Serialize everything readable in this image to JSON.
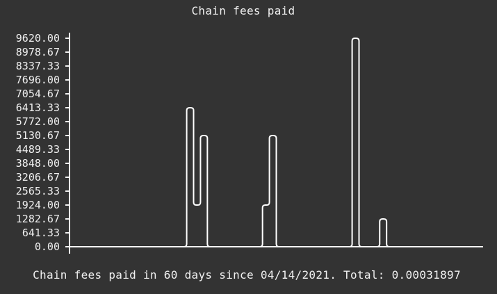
{
  "colors": {
    "background": "#333333",
    "foreground": "#f0f0f0",
    "line": "#ffffff"
  },
  "chart_data": {
    "type": "line",
    "title": "Chain fees paid",
    "caption": "Chain fees paid in 60 days since 04/14/2021. Total: 0.00031897",
    "ylim": [
      0,
      9620
    ],
    "yticks": [
      "9620.00",
      "8978.67",
      "8337.33",
      "7696.00",
      "7054.67",
      "6413.33",
      "5772.00",
      "5130.67",
      "4489.33",
      "3848.00",
      "3206.67",
      "2565.33",
      "1924.00",
      "1282.67",
      "641.33",
      "0.00"
    ],
    "xlabel": "",
    "ylabel": "",
    "x_axis_ticks": false,
    "grid": false,
    "x": [
      1,
      2,
      3,
      4,
      5,
      6,
      7,
      8,
      9,
      10,
      11,
      12,
      13,
      14,
      15,
      16,
      17,
      18,
      19,
      20,
      21,
      22,
      23,
      24,
      25,
      26,
      27,
      28,
      29,
      30,
      31,
      32,
      33,
      34,
      35,
      36,
      37,
      38,
      39,
      40,
      41,
      42,
      43,
      44,
      45,
      46,
      47,
      48,
      49,
      50,
      51,
      52,
      53,
      54,
      55,
      56,
      57,
      58,
      59,
      60
    ],
    "series": [
      {
        "values": [
          0,
          0,
          0,
          0,
          0,
          0,
          0,
          0,
          0,
          0,
          0,
          0,
          0,
          0,
          0,
          0,
          0,
          6413.33,
          1924,
          5130.67,
          0,
          0,
          0,
          0,
          0,
          0,
          0,
          0,
          1924,
          5130.67,
          0,
          0,
          0,
          0,
          0,
          0,
          0,
          0,
          0,
          0,
          0,
          9620,
          0,
          0,
          0,
          1282.67,
          0,
          0,
          0,
          0,
          0,
          0,
          0,
          0,
          0,
          0,
          0,
          0,
          0,
          0
        ]
      }
    ]
  }
}
